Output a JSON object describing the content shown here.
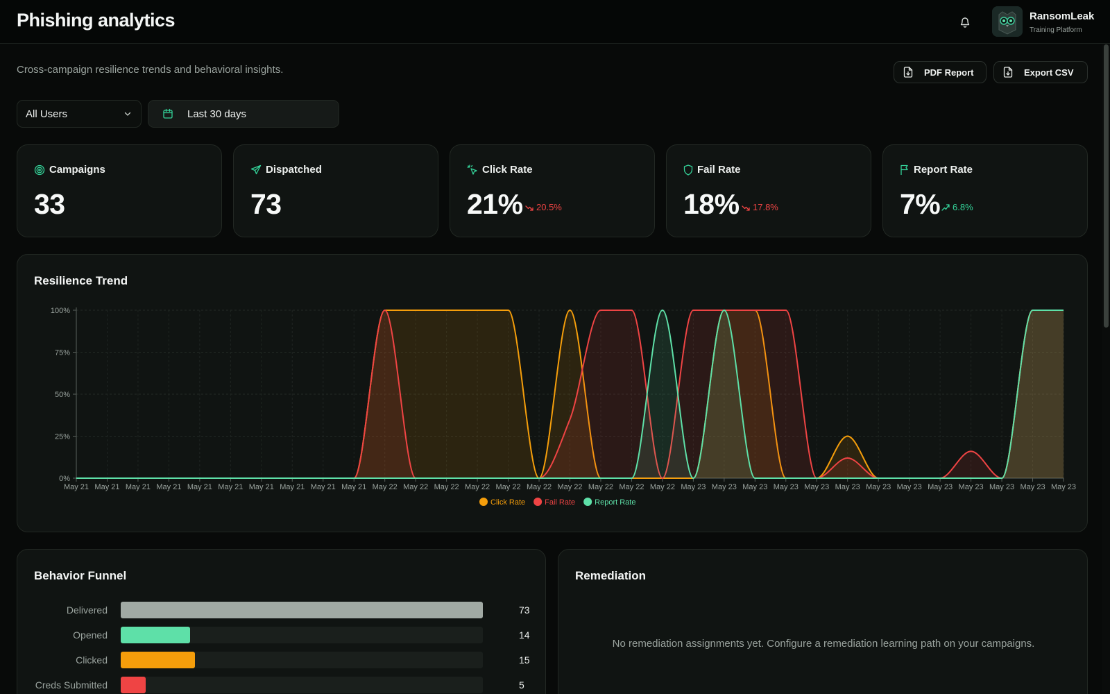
{
  "header": {
    "title": "Phishing analytics",
    "notification_icon": "bell-icon",
    "brand": {
      "name": "RansomLeak",
      "subtitle": "Training Platform",
      "logo_icon": "owl-logo"
    }
  },
  "subtitle": "Cross-campaign resilience trends and behavioral insights.",
  "actions": {
    "pdf_label": "PDF Report",
    "csv_label": "Export CSV"
  },
  "filters": {
    "users_selected": "All Users",
    "date_range": "Last 30 days"
  },
  "stats": [
    {
      "label": "Campaigns",
      "value": "33",
      "icon": "target-icon"
    },
    {
      "label": "Dispatched",
      "value": "73",
      "icon": "send-icon"
    },
    {
      "label": "Click Rate",
      "value": "21%",
      "delta": "20.5%",
      "trend": "down",
      "icon": "cursor-click-icon"
    },
    {
      "label": "Fail Rate",
      "value": "18%",
      "delta": "17.8%",
      "trend": "down",
      "icon": "shield-icon"
    },
    {
      "label": "Report Rate",
      "value": "7%",
      "delta": "6.8%",
      "trend": "up",
      "icon": "flag-icon"
    }
  ],
  "trend": {
    "title": "Resilience Trend",
    "chart_data": {
      "type": "area",
      "ylim": [
        0,
        100
      ],
      "y_ticks": [
        "0%",
        "25%",
        "50%",
        "75%",
        "100%"
      ],
      "x": [
        "May 21",
        "May 21",
        "May 21",
        "May 21",
        "May 21",
        "May 21",
        "May 21",
        "May 21",
        "May 21",
        "May 21",
        "May 22",
        "May 22",
        "May 22",
        "May 22",
        "May 22",
        "May 22",
        "May 22",
        "May 22",
        "May 22",
        "May 22",
        "May 23",
        "May 23",
        "May 23",
        "May 23",
        "May 23",
        "May 23",
        "May 23",
        "May 23",
        "May 23",
        "May 23",
        "May 23",
        "May 23",
        "May 23"
      ],
      "grid": true,
      "legend_position": "bottom-center",
      "series": [
        {
          "name": "Click Rate",
          "color": "#f59e0b",
          "values": [
            0,
            0,
            0,
            0,
            0,
            0,
            0,
            0,
            0,
            0,
            100,
            100,
            100,
            100,
            100,
            0,
            100,
            0,
            0,
            0,
            0,
            100,
            100,
            0,
            0,
            25,
            0,
            0,
            0,
            0,
            0,
            100,
            100
          ]
        },
        {
          "name": "Fail Rate",
          "color": "#ef4444",
          "values": [
            0,
            0,
            0,
            0,
            0,
            0,
            0,
            0,
            0,
            0,
            100,
            0,
            0,
            0,
            0,
            0,
            35,
            100,
            100,
            0,
            100,
            100,
            100,
            100,
            0,
            12,
            0,
            0,
            0,
            16,
            0,
            100,
            100
          ]
        },
        {
          "name": "Report Rate",
          "color": "#5ee0a8",
          "values": [
            0,
            0,
            0,
            0,
            0,
            0,
            0,
            0,
            0,
            0,
            0,
            0,
            0,
            0,
            0,
            0,
            0,
            0,
            0,
            100,
            0,
            100,
            0,
            0,
            0,
            0,
            0,
            0,
            0,
            0,
            0,
            100,
            100
          ]
        }
      ]
    }
  },
  "funnel": {
    "title": "Behavior Funnel",
    "rows": [
      {
        "label": "Delivered",
        "value": 73,
        "color": "#a1aaa4"
      },
      {
        "label": "Opened",
        "value": 14,
        "color": "#5ee0a8"
      },
      {
        "label": "Clicked",
        "value": 15,
        "color": "#f59e0b"
      },
      {
        "label": "Creds Submitted",
        "value": 5,
        "color": "#ef4444"
      }
    ]
  },
  "remediation": {
    "title": "Remediation",
    "empty_message": "No remediation assignments yet. Configure a remediation learning path on your campaigns."
  }
}
